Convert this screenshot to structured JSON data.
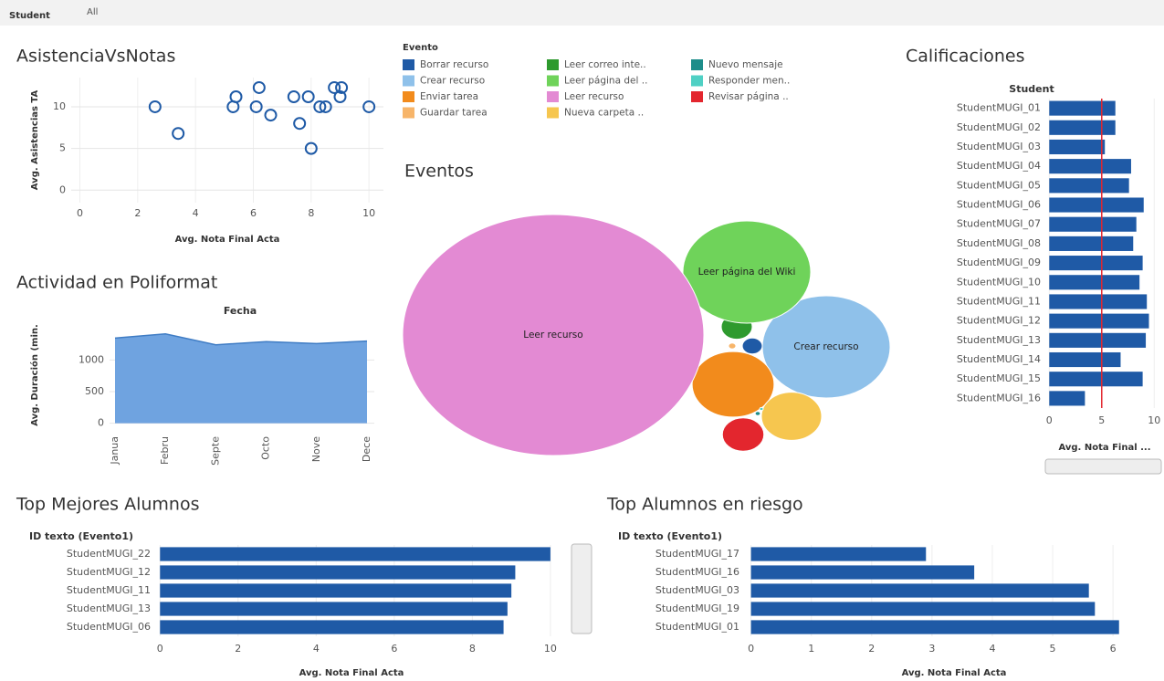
{
  "filter": {
    "label": "Student",
    "value": "All"
  },
  "chart_data": [
    {
      "type": "scatter",
      "title": "AsistenciaVsNotas",
      "xlabel": "Avg. Nota Final Acta",
      "ylabel": "Avg. Asistencias TA",
      "x": [
        2.6,
        3.4,
        5.3,
        5.4,
        6.2,
        6.1,
        6.6,
        7.4,
        7.6,
        7.9,
        8.0,
        8.3,
        8.5,
        8.8,
        9.0,
        9.05,
        10.0
      ],
      "y": [
        10,
        6.8,
        10,
        11.2,
        12.3,
        10,
        9,
        11.2,
        8,
        11.2,
        5,
        10,
        10,
        12.3,
        11.2,
        12.3,
        10
      ],
      "color": "#1f5aa6",
      "xlim": [
        -0.3,
        10.5
      ],
      "xticks": [
        0,
        2,
        4,
        6,
        8,
        10
      ],
      "ylim": [
        -1.5,
        13.5
      ],
      "yticks": [
        0,
        5,
        10
      ],
      "grid": true
    },
    {
      "type": "area",
      "title": "Actividad en Poliformat",
      "header": "Fecha",
      "ylabel": "Avg. Duración (min.",
      "categories": [
        "Janua",
        "Febru",
        "Septe",
        "Octo",
        "Nove",
        "Dece"
      ],
      "values": [
        1347,
        1413,
        1240,
        1290,
        1260,
        1300
      ],
      "color": "#6fa3e0",
      "ylim": [
        -120,
        1640
      ],
      "yticks": [
        0,
        500,
        1000
      ],
      "grid": true
    },
    {
      "type": "bubble",
      "title": "Eventos",
      "legend_title": "Evento",
      "series": [
        {
          "name": "Borrar recurso",
          "color": "#1f5aa6",
          "value": 0.44
        },
        {
          "name": "Crear recurso",
          "color": "#8fc1ea",
          "value": 18,
          "label": "Crear recurso"
        },
        {
          "name": "Enviar tarea",
          "color": "#f28b1c",
          "value": 7.4
        },
        {
          "name": "Guardar tarea",
          "color": "#f7b56a",
          "value": 0.06
        },
        {
          "name": "Leer correo inte..",
          "color": "#2e9a2e",
          "value": 1.06
        },
        {
          "name": "Leer página del ..",
          "color": "#6fd35a",
          "value": 18,
          "label": "Leer página del Wiki"
        },
        {
          "name": "Leer recurso",
          "color": "#e38ad3",
          "value": 100,
          "label": "Leer recurso"
        },
        {
          "name": "Nueva carpeta ..",
          "color": "#f6c64f",
          "value": 4
        },
        {
          "name": "Nuevo mensaje",
          "color": "#1d8d8a",
          "value": 0.03
        },
        {
          "name": "Responder men..",
          "color": "#4fd0c4",
          "value": 0.015
        },
        {
          "name": "Revisar página ..",
          "color": "#e3262e",
          "value": 1.9
        }
      ]
    },
    {
      "type": "hbar",
      "title": "Calificaciones",
      "header": "Student",
      "xlabel": "Avg. Nota Final ...",
      "categories": [
        "StudentMUGI_01",
        "StudentMUGI_02",
        "StudentMUGI_03",
        "StudentMUGI_04",
        "StudentMUGI_05",
        "StudentMUGI_06",
        "StudentMUGI_07",
        "StudentMUGI_08",
        "StudentMUGI_09",
        "StudentMUGI_10",
        "StudentMUGI_11",
        "StudentMUGI_12",
        "StudentMUGI_13",
        "StudentMUGI_14",
        "StudentMUGI_15",
        "StudentMUGI_16"
      ],
      "values": [
        6.3,
        6.3,
        5.3,
        7.8,
        7.6,
        9.0,
        8.3,
        8.0,
        8.9,
        8.6,
        9.3,
        9.5,
        9.2,
        6.8,
        8.9,
        3.4
      ],
      "color": "#1f5aa6",
      "xlim": [
        -0.2,
        10.5
      ],
      "xticks": [
        0,
        5,
        10
      ],
      "reference_line": 5,
      "reference_color": "#e3262e",
      "grid": true
    },
    {
      "type": "hbar",
      "title": "Top Mejores Alumnos",
      "header": "ID texto (Evento1)",
      "xlabel": "Avg. Nota Final Acta",
      "categories": [
        "StudentMUGI_22",
        "StudentMUGI_12",
        "StudentMUGI_11",
        "StudentMUGI_13",
        "StudentMUGI_06"
      ],
      "values": [
        10.0,
        9.1,
        9.0,
        8.9,
        8.8
      ],
      "color": "#1f5aa6",
      "xlim": [
        -0.1,
        10.4
      ],
      "xticks": [
        0,
        2,
        4,
        6,
        8,
        10
      ],
      "grid": true
    },
    {
      "type": "hbar",
      "title": "Top Alumnos en riesgo",
      "header": "ID texto (Evento1)",
      "xlabel": "Avg. Nota Final Acta",
      "categories": [
        "StudentMUGI_17",
        "StudentMUGI_16",
        "StudentMUGI_03",
        "StudentMUGI_19",
        "StudentMUGI_01"
      ],
      "values": [
        2.9,
        3.7,
        5.6,
        5.7,
        6.1
      ],
      "color": "#1f5aa6",
      "xlim": [
        -0.1,
        6.8
      ],
      "xticks": [
        0,
        1,
        2,
        3,
        4,
        5,
        6
      ],
      "grid": true
    }
  ]
}
